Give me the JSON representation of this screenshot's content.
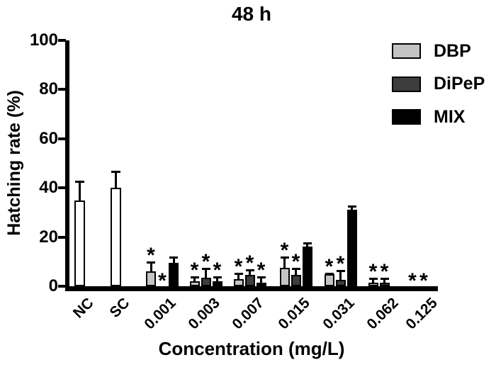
{
  "chart_data": {
    "type": "bar",
    "title": "48 h",
    "xlabel": "Concentration (mg/L)",
    "ylabel": "Hatching rate (%)",
    "ylim": [
      0,
      100
    ],
    "yticks": [
      0,
      20,
      40,
      60,
      80,
      100
    ],
    "grid": false,
    "legend_position": "top-right",
    "significance_marker": "*",
    "bar_outline_color": "#000000",
    "categories": [
      "NC",
      "SC",
      "0.001",
      "0.003",
      "0.007",
      "0.015",
      "0.031",
      "0.062",
      "0.125"
    ],
    "controls": [
      {
        "category": "NC",
        "value": 35,
        "error_plus": 8,
        "color": "#ffffff",
        "significant": false
      },
      {
        "category": "SC",
        "value": 40,
        "error_plus": 7,
        "color": "#ffffff",
        "significant": false
      }
    ],
    "series": [
      {
        "name": "DBP",
        "color": "#c4c4c4",
        "values": [
          null,
          null,
          6,
          2,
          3,
          7.5,
          5,
          1.5,
          0
        ],
        "errors_plus": [
          null,
          null,
          4,
          2,
          2.5,
          4.5,
          0.5,
          2,
          0
        ],
        "significant": [
          false,
          false,
          true,
          true,
          true,
          true,
          true,
          true,
          true
        ]
      },
      {
        "name": "DiPeP",
        "color": "#3d3d3d",
        "values": [
          null,
          null,
          0,
          3.5,
          4.5,
          4.5,
          2.5,
          1.5,
          0
        ],
        "errors_plus": [
          null,
          null,
          0,
          4,
          2.5,
          3,
          4,
          2,
          0
        ],
        "significant": [
          false,
          false,
          true,
          true,
          true,
          true,
          true,
          true,
          true
        ]
      },
      {
        "name": "MIX",
        "color": "#000000",
        "values": [
          null,
          null,
          9.5,
          2,
          1.5,
          16,
          31,
          0,
          0
        ],
        "errors_plus": [
          null,
          null,
          2.5,
          2,
          2.5,
          2,
          2,
          0,
          0
        ],
        "significant": [
          false,
          false,
          false,
          true,
          true,
          false,
          false,
          false,
          false
        ]
      }
    ]
  }
}
